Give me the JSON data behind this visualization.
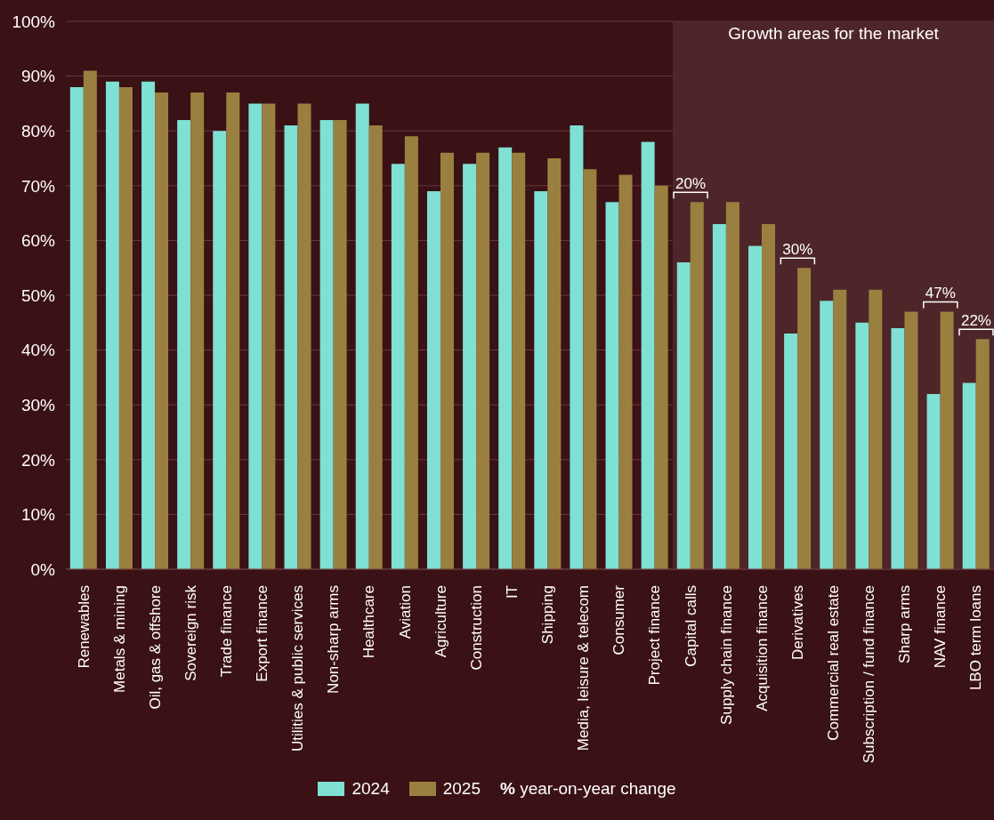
{
  "chart_data": {
    "type": "bar",
    "categories": [
      "Renewables",
      "Metals & mining",
      "Oil, gas & offshore",
      "Sovereign risk",
      "Trade finance",
      "Export finance",
      "Utilities & public services",
      "Non-sharp arms",
      "Healthcare",
      "Aviation",
      "Agriculture",
      "Construction",
      "IT",
      "Shipping",
      "Media, leisure & telecom",
      "Consumer",
      "Project finance",
      "Capital calls",
      "Supply chain finance",
      "Acquisition finance",
      "Derivatives",
      "Commercial real estate",
      "Subscription / fund finance",
      "Sharp arms",
      "NAV finance",
      "LBO term loans"
    ],
    "series": [
      {
        "name": "2024",
        "color": "#7fe0d4",
        "values": [
          88,
          89,
          89,
          82,
          80,
          85,
          81,
          82,
          85,
          74,
          69,
          74,
          77,
          69,
          81,
          67,
          78,
          56,
          63,
          59,
          43,
          49,
          45,
          44,
          32,
          34
        ]
      },
      {
        "name": "2025",
        "color": "#9a8040",
        "values": [
          91,
          88,
          87,
          87,
          87,
          85,
          85,
          82,
          81,
          79,
          76,
          76,
          76,
          75,
          73,
          72,
          70,
          67,
          67,
          63,
          55,
          51,
          51,
          47,
          47,
          42
        ]
      }
    ],
    "ylim": [
      0,
      100
    ],
    "yticks": [
      {
        "value": 0,
        "label": "0%"
      },
      {
        "value": 10,
        "label": "10%"
      },
      {
        "value": 20,
        "label": "20%"
      },
      {
        "value": 30,
        "label": "30%"
      },
      {
        "value": 40,
        "label": "40%"
      },
      {
        "value": 50,
        "label": "50%"
      },
      {
        "value": 60,
        "label": "60%"
      },
      {
        "value": 70,
        "label": "70%"
      },
      {
        "value": 80,
        "label": "80%"
      },
      {
        "value": 90,
        "label": "90%"
      },
      {
        "value": 100,
        "label": "100%"
      }
    ],
    "grid": "y",
    "legend": "bottom",
    "bands": [
      {
        "axis": "x",
        "from": "Capital calls",
        "to": "LBO term loans",
        "label": "Growth areas for the market",
        "color": "#4e2528"
      }
    ],
    "annotations": [
      {
        "text": "20%",
        "x": "Capital calls",
        "y": 67
      },
      {
        "text": "30%",
        "x": "Derivatives",
        "y": 55
      },
      {
        "text": "47%",
        "x": "NAV finance",
        "y": 47
      },
      {
        "text": "22%",
        "x": "LBO term loans",
        "y": 42
      },
      "% year-on-year change"
    ]
  }
}
